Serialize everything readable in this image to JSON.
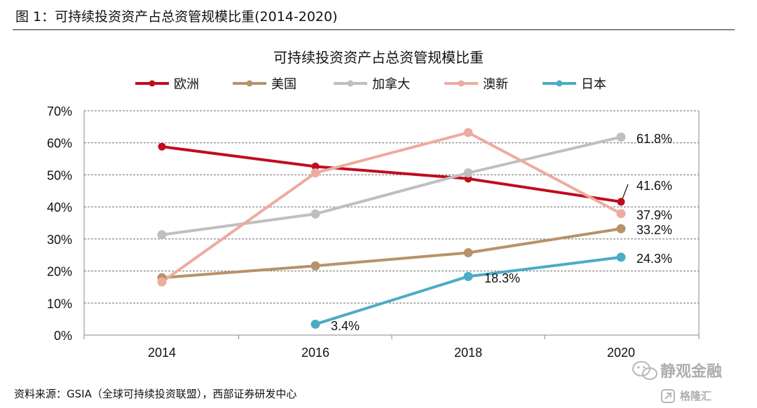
{
  "caption": "图 1：可持续投资资产占总资管规模比重(2014-2020)",
  "source": "资料来源：GSIA（全球可持续投资联盟），西部证券研发中心",
  "watermark": {
    "main": "静观金融",
    "sub": "格隆汇"
  },
  "chart_data": {
    "type": "line",
    "title": "可持续投资资产占总资管规模比重",
    "xlabel": "",
    "ylabel": "",
    "categories": [
      "2014",
      "2016",
      "2018",
      "2020"
    ],
    "ylim": [
      0,
      70
    ],
    "yticks": [
      "0%",
      "10%",
      "20%",
      "30%",
      "40%",
      "50%",
      "60%",
      "70%"
    ],
    "grid": "horizontal-dashed",
    "legend_position": "top",
    "series": [
      {
        "name": "欧洲",
        "color": "#c00d1e",
        "values": [
          58.8,
          52.6,
          48.8,
          41.6
        ],
        "labels": [
          "",
          "",
          "",
          "41.6%"
        ]
      },
      {
        "name": "美国",
        "color": "#b8926a",
        "values": [
          17.9,
          21.6,
          25.7,
          33.2
        ],
        "labels": [
          "",
          "",
          "",
          "33.2%"
        ]
      },
      {
        "name": "加拿大",
        "color": "#bfbfbf",
        "values": [
          31.3,
          37.8,
          50.6,
          61.8
        ],
        "labels": [
          "",
          "",
          "",
          "61.8%"
        ]
      },
      {
        "name": "澳新",
        "color": "#eeaba0",
        "values": [
          16.6,
          50.6,
          63.2,
          37.9
        ],
        "labels": [
          "",
          "",
          "",
          "37.9%"
        ]
      },
      {
        "name": "日本",
        "color": "#4bacc6",
        "values": [
          null,
          3.4,
          18.3,
          24.3
        ],
        "labels": [
          "",
          "3.4%",
          "18.3%",
          "24.3%"
        ]
      }
    ]
  }
}
